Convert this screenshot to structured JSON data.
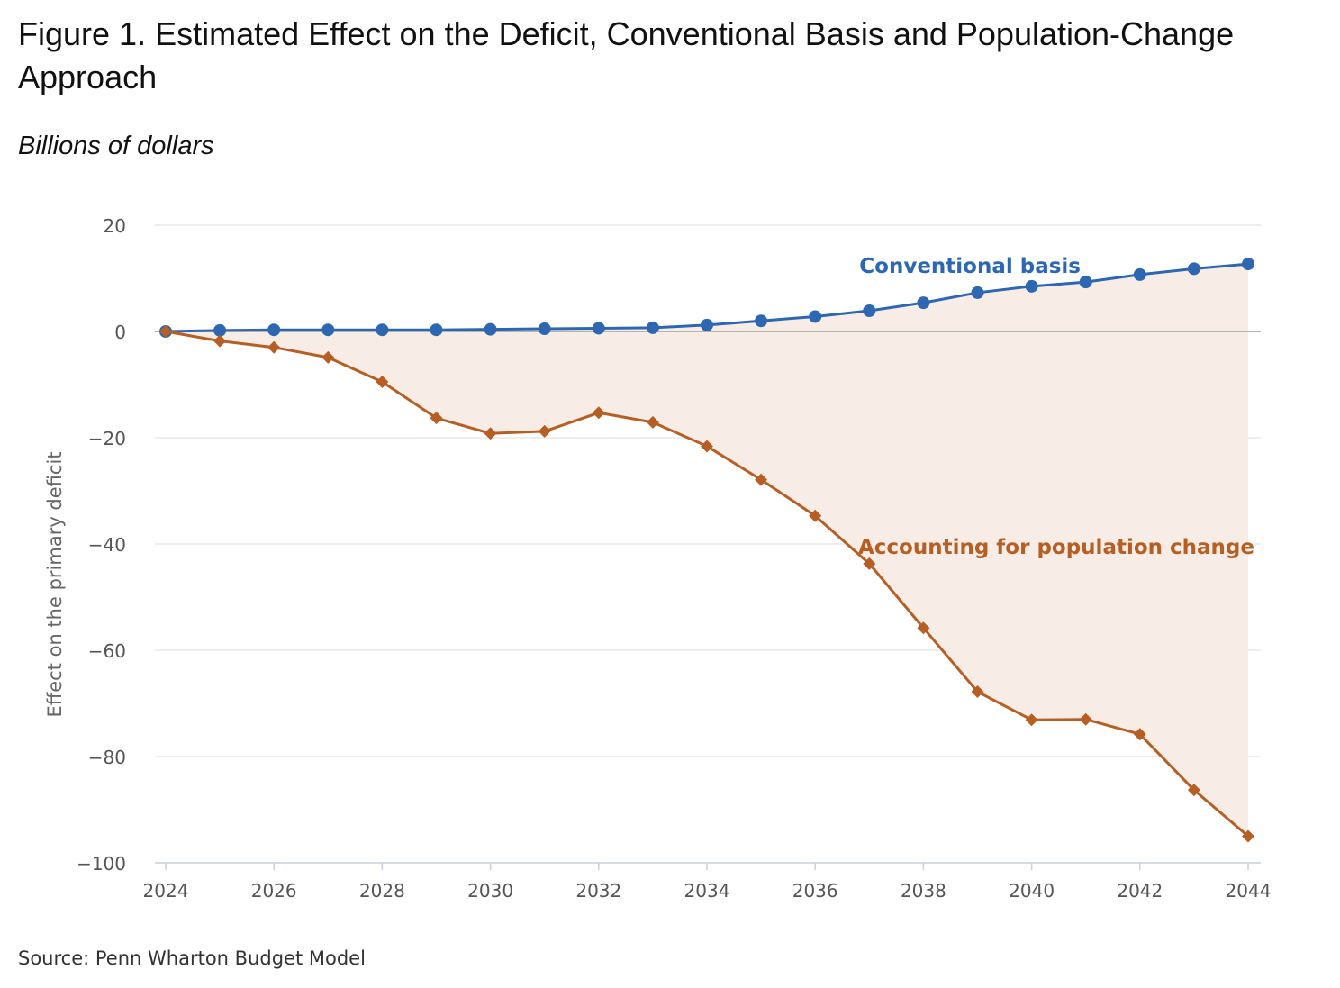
{
  "figure": {
    "title": "Figure 1. Estimated Effect on the Deficit, Conventional Basis and Population-Change Approach",
    "subtitle": "Billions of dollars",
    "source": "Source: Penn Wharton Budget Model"
  },
  "chart_data": {
    "type": "line",
    "ylabel": "Effect on the primary deficit",
    "xlabel": "",
    "x": [
      2024,
      2025,
      2026,
      2027,
      2028,
      2029,
      2030,
      2031,
      2032,
      2033,
      2034,
      2035,
      2036,
      2037,
      2038,
      2039,
      2040,
      2041,
      2042,
      2043,
      2044
    ],
    "xticks": [
      2024,
      2026,
      2028,
      2030,
      2032,
      2034,
      2036,
      2038,
      2040,
      2042,
      2044
    ],
    "ylim": [
      -100,
      20
    ],
    "yticks": [
      20,
      0,
      -20,
      -40,
      -60,
      -80,
      -100
    ],
    "ytick_labels": [
      "20",
      "0",
      "−20",
      "−40",
      "−60",
      "−80",
      "−100"
    ],
    "grid": true,
    "fill_between_series": true,
    "series": [
      {
        "name": "Conventional basis",
        "marker": "circle",
        "color": "#2e67b1",
        "values": [
          0,
          0.2,
          0.3,
          0.3,
          0.3,
          0.3,
          0.4,
          0.5,
          0.6,
          0.7,
          1.2,
          2.0,
          2.8,
          3.9,
          5.4,
          7.3,
          8.5,
          9.3,
          10.7,
          11.8,
          12.7
        ]
      },
      {
        "name": "Accounting for population change",
        "marker": "diamond",
        "color": "#b55f24",
        "values": [
          0,
          -1.8,
          -3.0,
          -4.9,
          -9.5,
          -16.3,
          -19.2,
          -18.8,
          -15.3,
          -17.1,
          -21.6,
          -27.9,
          -34.7,
          -43.7,
          -55.8,
          -67.8,
          -73.1,
          -73.0,
          -75.8,
          -86.3,
          -95.0
        ]
      }
    ]
  }
}
